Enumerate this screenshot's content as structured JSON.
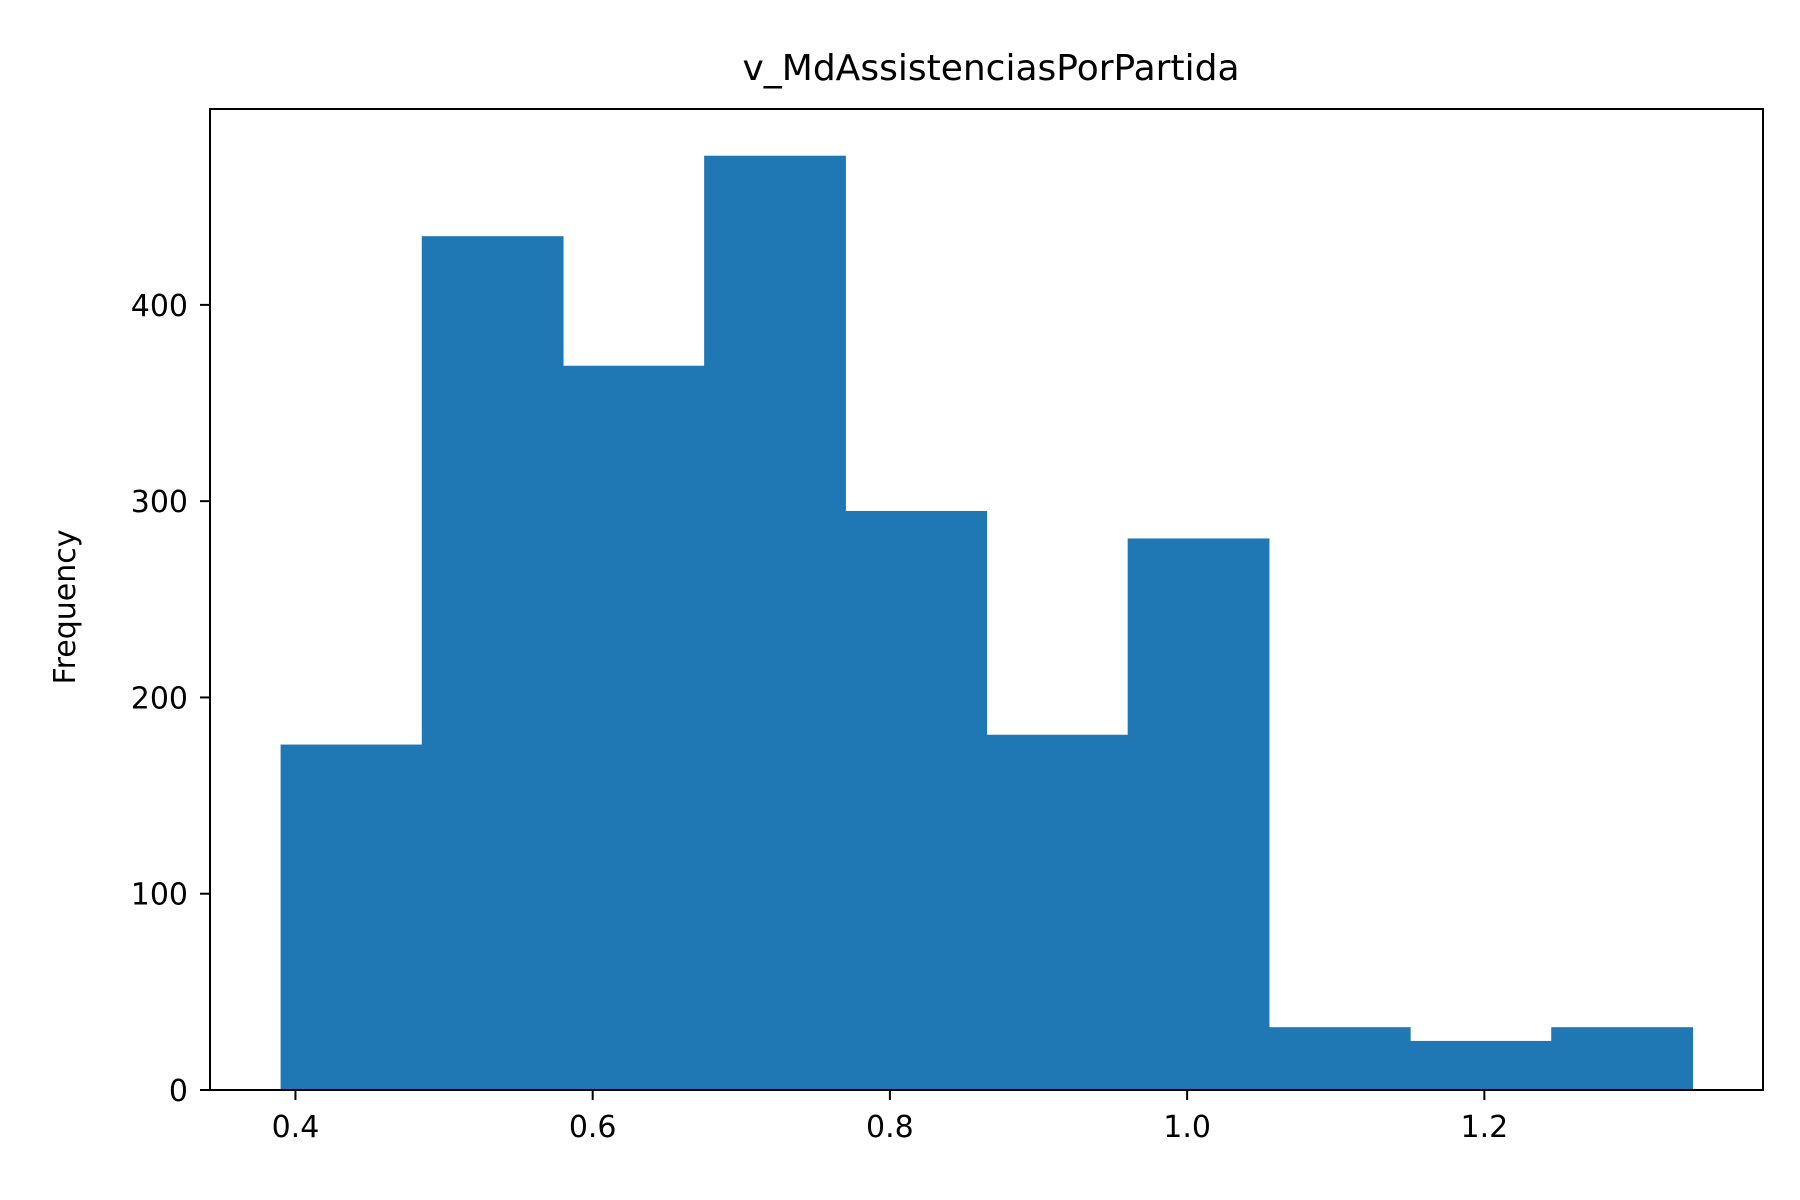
{
  "chart_data": {
    "type": "bar",
    "subtype": "histogram",
    "title": "v_MdAssistenciasPorPartida",
    "xlabel": "",
    "ylabel": "Frequency",
    "bins": [
      {
        "x0": 0.39,
        "x1": 0.485,
        "count": 176
      },
      {
        "x0": 0.485,
        "x1": 0.58,
        "count": 435
      },
      {
        "x0": 0.58,
        "x1": 0.675,
        "count": 369
      },
      {
        "x0": 0.675,
        "x1": 0.77,
        "count": 476
      },
      {
        "x0": 0.77,
        "x1": 0.865,
        "count": 295
      },
      {
        "x0": 0.865,
        "x1": 0.96,
        "count": 181
      },
      {
        "x0": 0.96,
        "x1": 1.055,
        "count": 281
      },
      {
        "x0": 1.055,
        "x1": 1.15,
        "count": 32
      },
      {
        "x0": 1.15,
        "x1": 1.245,
        "count": 25
      },
      {
        "x0": 1.245,
        "x1": 1.34,
        "count": 32
      }
    ],
    "xlim": [
      0.3425,
      1.3875
    ],
    "ylim": [
      0,
      499.8
    ],
    "xticks": [
      {
        "value": 0.4,
        "label": "0.4"
      },
      {
        "value": 0.6,
        "label": "0.6"
      },
      {
        "value": 0.8,
        "label": "0.8"
      },
      {
        "value": 1.0,
        "label": "1.0"
      },
      {
        "value": 1.2,
        "label": "1.2"
      }
    ],
    "yticks": [
      {
        "value": 0,
        "label": "0"
      },
      {
        "value": 100,
        "label": "100"
      },
      {
        "value": 200,
        "label": "200"
      },
      {
        "value": 300,
        "label": "300"
      },
      {
        "value": 400,
        "label": "400"
      }
    ],
    "bar_color": "#1f77b4",
    "grid": false,
    "legend": false
  }
}
